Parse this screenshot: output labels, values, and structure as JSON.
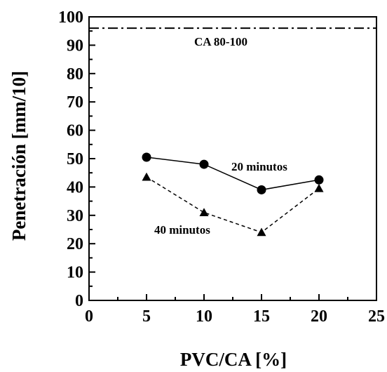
{
  "chart_data": {
    "type": "line",
    "xlabel": "PVC/CA [%]",
    "ylabel": "Penetración [mm/10]",
    "xlim": [
      0,
      25
    ],
    "ylim": [
      0,
      100
    ],
    "xticks": [
      "0",
      "5",
      "10",
      "15",
      "20",
      "25"
    ],
    "yticks": [
      "0",
      "10",
      "20",
      "30",
      "40",
      "50",
      "60",
      "70",
      "80",
      "90",
      "100"
    ],
    "grid": false,
    "reference_line": {
      "label": "CA 80-100",
      "y": 96,
      "style": "dash-dot"
    },
    "series": [
      {
        "name": "20 minutos",
        "marker": "circle",
        "line": "solid",
        "x": [
          5,
          10,
          15,
          20
        ],
        "y": [
          50.5,
          48,
          39,
          42.5
        ]
      },
      {
        "name": "40 minutos",
        "marker": "triangle",
        "line": "dashed",
        "x": [
          5,
          10,
          15,
          20
        ],
        "y": [
          43.5,
          31,
          24,
          39.5
        ]
      }
    ],
    "colors": {
      "ink": "#000000",
      "background": "#ffffff"
    }
  }
}
